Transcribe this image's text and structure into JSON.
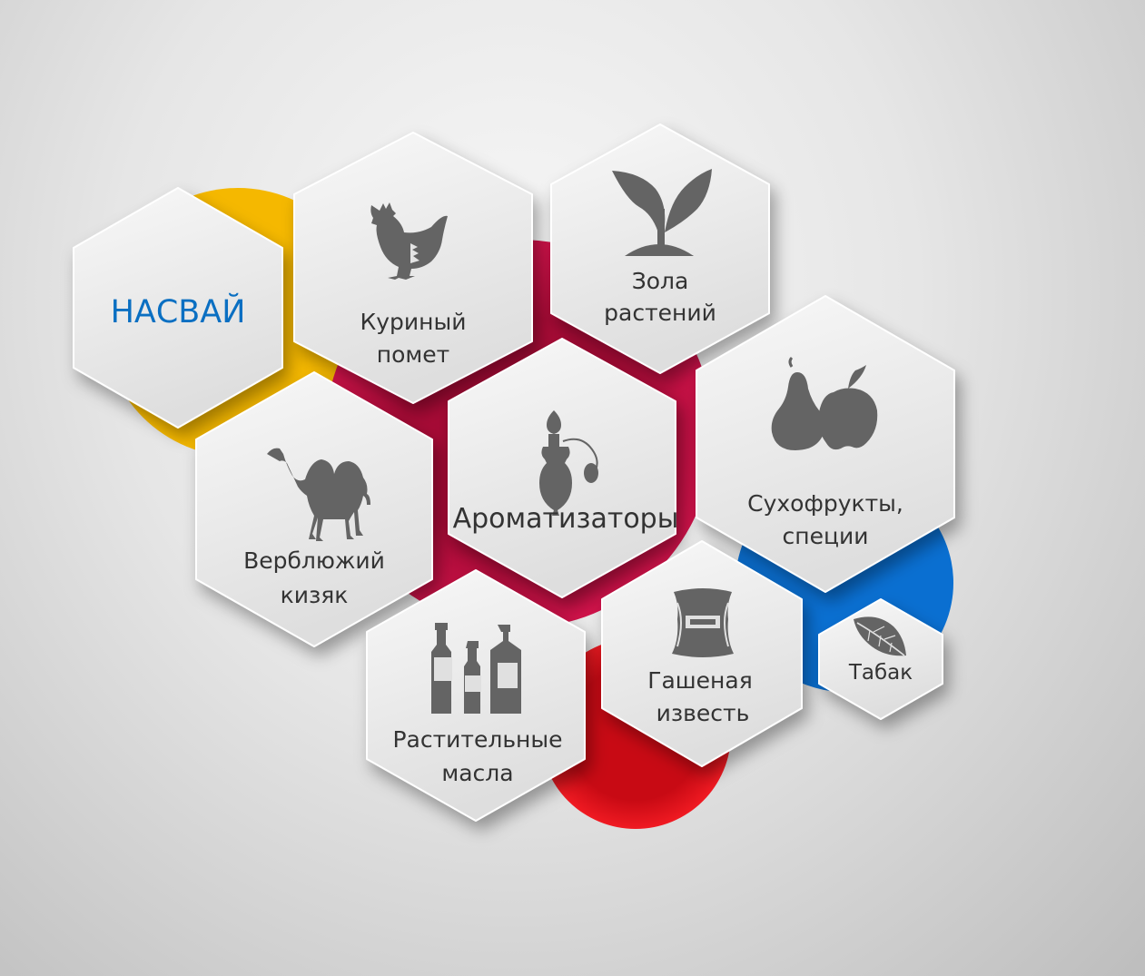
{
  "colors": {
    "yellow": "#f5b800",
    "crimson": "#c8103f",
    "red": "#e8101e",
    "blue": "#0a6fd1",
    "title": "#0a6fc2",
    "icon": "#646464",
    "text": "#333333"
  },
  "title": "НАСВАЙ",
  "items": [
    {
      "id": "chicken",
      "icon": "chicken-icon",
      "lines": [
        "Куриный",
        "помет"
      ]
    },
    {
      "id": "ash",
      "icon": "sprout-icon",
      "lines": [
        "Зола",
        "растений"
      ]
    },
    {
      "id": "camel",
      "icon": "camel-icon",
      "lines": [
        "Верблюжий",
        "кизяк"
      ]
    },
    {
      "id": "aroma",
      "icon": "perfume-bottle-icon",
      "lines": [
        "Ароматизаторы"
      ]
    },
    {
      "id": "fruits",
      "icon": "pear-apple-icon",
      "lines": [
        "Сухофрукты,",
        "специи"
      ]
    },
    {
      "id": "oils",
      "icon": "bottles-icon",
      "lines": [
        "Растительные",
        "масла"
      ]
    },
    {
      "id": "lime",
      "icon": "sack-icon",
      "lines": [
        "Гашеная",
        "известь"
      ]
    },
    {
      "id": "tobacco",
      "icon": "tobacco-leaf-icon",
      "lines": [
        "Табак"
      ]
    }
  ]
}
